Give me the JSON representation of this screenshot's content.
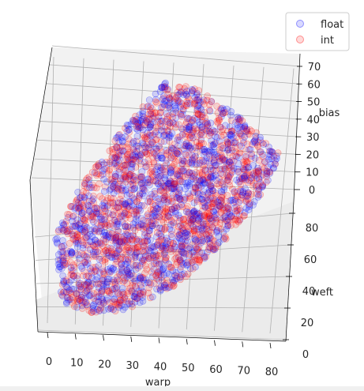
{
  "chart_data": {
    "type": "scatter",
    "projection": "3d",
    "title": "",
    "xlabel": "warp",
    "ylabel": "weft",
    "zlabel": "bias",
    "xlim": [
      -5,
      85
    ],
    "ylim": [
      0,
      100
    ],
    "zlim": [
      -5,
      75
    ],
    "x_ticks": [
      "0",
      "10",
      "20",
      "30",
      "40",
      "50",
      "60",
      "70",
      "80"
    ],
    "y_ticks": [
      "0",
      "20",
      "40",
      "60",
      "80"
    ],
    "z_ticks": [
      "0",
      "10",
      "20",
      "30",
      "40",
      "50",
      "60",
      "70"
    ],
    "grid": true,
    "legend_position": "upper right",
    "series": [
      {
        "name": "float",
        "color": "#0000ff",
        "alpha": 0.15,
        "marker": "circle"
      },
      {
        "name": "int",
        "color": "#ff0000",
        "alpha": 0.15,
        "marker": "circle"
      }
    ],
    "approximate_extent": {
      "warp": [
        0,
        80
      ],
      "weft": [
        0,
        100
      ],
      "bias": [
        0,
        73
      ]
    }
  }
}
